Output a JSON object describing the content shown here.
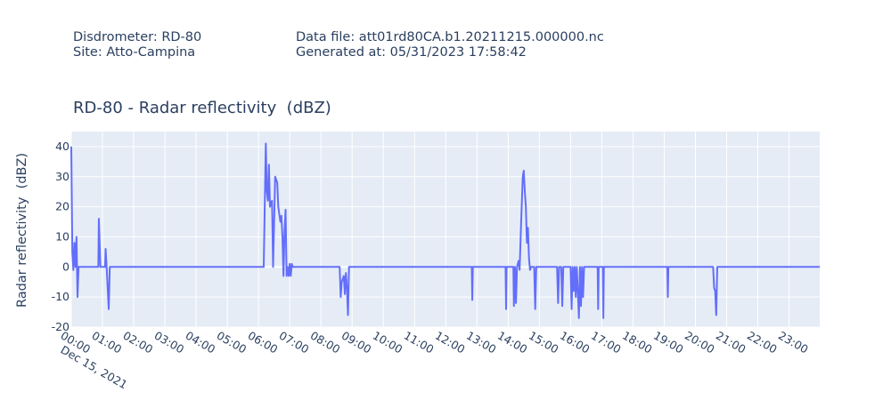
{
  "header": {
    "disdrometer": "Disdrometer: RD-80",
    "site": "Site: Atto-Campina",
    "data_file": "Data file: att01rd80CA.b1.20211215.000000.nc",
    "generated": "Generated at: 05/31/2023 17:58:42"
  },
  "chart_data": {
    "type": "line",
    "title": "RD-80 - Radar reflectivity  (dBZ)",
    "y_label": "Radar reflectivity  (dBZ)",
    "date_label": "Dec 15, 2021",
    "color": "#636efa",
    "grid": true,
    "xlim": [
      "2021-12-15 00:00",
      "2021-12-15 23:59"
    ],
    "ylim": [
      -20,
      45
    ],
    "yticks": [
      -20,
      -10,
      0,
      10,
      20,
      30,
      40
    ],
    "xticks": [
      {
        "value": "2021-12-15 00:00",
        "label": "00:00"
      },
      {
        "value": "2021-12-15 01:00",
        "label": "01:00"
      },
      {
        "value": "2021-12-15 02:00",
        "label": "02:00"
      },
      {
        "value": "2021-12-15 03:00",
        "label": "03:00"
      },
      {
        "value": "2021-12-15 04:00",
        "label": "04:00"
      },
      {
        "value": "2021-12-15 05:00",
        "label": "05:00"
      },
      {
        "value": "2021-12-15 06:00",
        "label": "06:00"
      },
      {
        "value": "2021-12-15 07:00",
        "label": "07:00"
      },
      {
        "value": "2021-12-15 08:00",
        "label": "08:00"
      },
      {
        "value": "2021-12-15 09:00",
        "label": "09:00"
      },
      {
        "value": "2021-12-15 10:00",
        "label": "10:00"
      },
      {
        "value": "2021-12-15 11:00",
        "label": "11:00"
      },
      {
        "value": "2021-12-15 12:00",
        "label": "12:00"
      },
      {
        "value": "2021-12-15 13:00",
        "label": "13:00"
      },
      {
        "value": "2021-12-15 14:00",
        "label": "14:00"
      },
      {
        "value": "2021-12-15 15:00",
        "label": "15:00"
      },
      {
        "value": "2021-12-15 16:00",
        "label": "16:00"
      },
      {
        "value": "2021-12-15 17:00",
        "label": "17:00"
      },
      {
        "value": "2021-12-15 18:00",
        "label": "18:00"
      },
      {
        "value": "2021-12-15 19:00",
        "label": "19:00"
      },
      {
        "value": "2021-12-15 20:00",
        "label": "20:00"
      },
      {
        "value": "2021-12-15 21:00",
        "label": "21:00"
      },
      {
        "value": "2021-12-15 22:00",
        "label": "22:00"
      },
      {
        "value": "2021-12-15 23:00",
        "label": "23:00"
      }
    ],
    "x": [
      "2021-12-15 00:00",
      "2021-12-15 00:02",
      "2021-12-15 00:04",
      "2021-12-15 00:06",
      "2021-12-15 00:08",
      "2021-12-15 00:10",
      "2021-12-15 00:12",
      "2021-12-15 00:14",
      "2021-12-15 00:52",
      "2021-12-15 00:53",
      "2021-12-15 00:56",
      "2021-12-15 01:05",
      "2021-12-15 01:06",
      "2021-12-15 01:08",
      "2021-12-15 01:12",
      "2021-12-15 01:14",
      "2021-12-15 06:10",
      "2021-12-15 06:14",
      "2021-12-15 06:16",
      "2021-12-15 06:18",
      "2021-12-15 06:20",
      "2021-12-15 06:22",
      "2021-12-15 06:26",
      "2021-12-15 06:28",
      "2021-12-15 06:32",
      "2021-12-15 06:36",
      "2021-12-15 06:38",
      "2021-12-15 06:42",
      "2021-12-15 06:44",
      "2021-12-15 06:46",
      "2021-12-15 06:48",
      "2021-12-15 06:50",
      "2021-12-15 06:52",
      "2021-12-15 06:54",
      "2021-12-15 06:56",
      "2021-12-15 06:58",
      "2021-12-15 07:00",
      "2021-12-15 07:02",
      "2021-12-15 07:04",
      "2021-12-15 07:06",
      "2021-12-15 08:36",
      "2021-12-15 08:38",
      "2021-12-15 08:40",
      "2021-12-15 08:44",
      "2021-12-15 08:46",
      "2021-12-15 08:48",
      "2021-12-15 08:50",
      "2021-12-15 08:52",
      "2021-12-15 08:54",
      "2021-12-15 12:50",
      "2021-12-15 12:51",
      "2021-12-15 12:52",
      "2021-12-15 13:55",
      "2021-12-15 13:56",
      "2021-12-15 13:57",
      "2021-12-15 14:10",
      "2021-12-15 14:11",
      "2021-12-15 14:13",
      "2021-12-15 14:15",
      "2021-12-15 14:17",
      "2021-12-15 14:20",
      "2021-12-15 14:22",
      "2021-12-15 14:24",
      "2021-12-15 14:26",
      "2021-12-15 14:28",
      "2021-12-15 14:30",
      "2021-12-15 14:32",
      "2021-12-15 14:34",
      "2021-12-15 14:36",
      "2021-12-15 14:38",
      "2021-12-15 14:40",
      "2021-12-15 14:42",
      "2021-12-15 14:44",
      "2021-12-15 14:50",
      "2021-12-15 14:52",
      "2021-12-15 14:54",
      "2021-12-15 15:34",
      "2021-12-15 15:36",
      "2021-12-15 15:38",
      "2021-12-15 15:42",
      "2021-12-15 15:44",
      "2021-12-15 15:46",
      "2021-12-15 16:00",
      "2021-12-15 16:02",
      "2021-12-15 16:04",
      "2021-12-15 16:06",
      "2021-12-15 16:08",
      "2021-12-15 16:10",
      "2021-12-15 16:12",
      "2021-12-15 16:16",
      "2021-12-15 16:18",
      "2021-12-15 16:20",
      "2021-12-15 16:22",
      "2021-12-15 16:24",
      "2021-12-15 16:26",
      "2021-12-15 16:52",
      "2021-12-15 16:53",
      "2021-12-15 16:54",
      "2021-12-15 17:02",
      "2021-12-15 17:03",
      "2021-12-15 17:04",
      "2021-12-15 19:06",
      "2021-12-15 19:07",
      "2021-12-15 19:08",
      "2021-12-15 20:34",
      "2021-12-15 20:36",
      "2021-12-15 20:38",
      "2021-12-15 20:40",
      "2021-12-15 20:42",
      "2021-12-15 23:59"
    ],
    "values": [
      40,
      5,
      -1,
      8,
      0,
      10,
      -10,
      0,
      0,
      16,
      0,
      0,
      6,
      0,
      -14,
      0,
      0,
      41,
      25,
      22,
      34,
      20,
      22,
      0,
      30,
      28,
      20,
      15,
      17,
      10,
      -3,
      12,
      19,
      -3,
      0,
      -3,
      1,
      -3,
      1,
      0,
      0,
      -10,
      -5,
      -3,
      -9,
      -2,
      -7,
      -16,
      0,
      0,
      -11,
      0,
      0,
      -14,
      0,
      0,
      -13,
      0,
      -12,
      0,
      2,
      -1,
      10,
      20,
      30,
      32,
      25,
      20,
      8,
      13,
      3,
      -1,
      0,
      0,
      -14,
      0,
      0,
      -12,
      0,
      0,
      -13,
      0,
      0,
      -14,
      0,
      -8,
      0,
      -10,
      0,
      -17,
      0,
      -13,
      0,
      -10,
      0,
      0,
      -14,
      0,
      0,
      -17,
      0,
      0,
      -10,
      0,
      0,
      -7,
      -8,
      -16,
      0,
      0
    ]
  }
}
